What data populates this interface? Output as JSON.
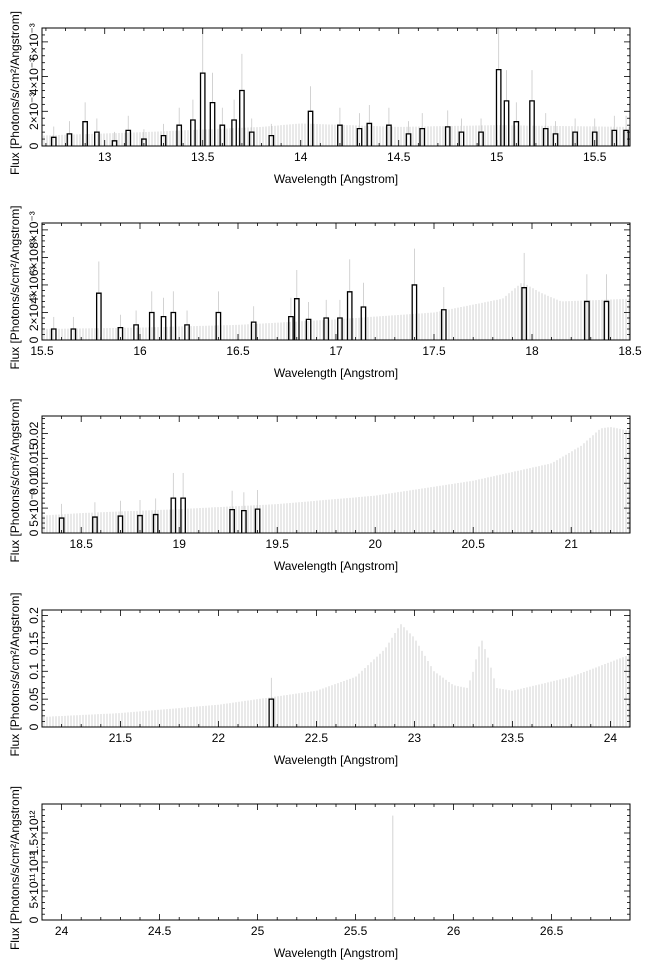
{
  "chart_data": [
    {
      "type": "line",
      "xlabel": "Wavelength [Angstrom]",
      "ylabel": "Flux [Photons/s/cm²/Angstrom]",
      "xlim": [
        12.68,
        15.68
      ],
      "ylim": [
        0,
        0.0068
      ],
      "xticks": [
        13,
        13.5,
        14,
        14.5,
        15,
        15.5
      ],
      "xtick_labels": [
        "13",
        "13.5",
        "14",
        "14.5",
        "15",
        "15.5"
      ],
      "yticks": [
        0,
        0.002,
        0.004,
        0.006
      ],
      "ytick_labels": [
        "0",
        "2×10⁻³",
        "4×10⁻³",
        "6×10⁻³"
      ],
      "envelope": [
        [
          12.68,
          0.0006
        ],
        [
          13.2,
          0.0008
        ],
        [
          13.8,
          0.0011
        ],
        [
          14.0,
          0.0013
        ],
        [
          14.5,
          0.0011
        ],
        [
          15.0,
          0.0012
        ],
        [
          15.68,
          0.0011
        ]
      ],
      "data": [
        [
          12.74,
          0.0005
        ],
        [
          12.82,
          0.0007
        ],
        [
          12.9,
          0.0014
        ],
        [
          12.96,
          0.0008
        ],
        [
          13.05,
          0.0003
        ],
        [
          13.12,
          0.0009
        ],
        [
          13.2,
          0.0004
        ],
        [
          13.3,
          0.0006
        ],
        [
          13.38,
          0.0012
        ],
        [
          13.45,
          0.0015
        ],
        [
          13.5,
          0.0042
        ],
        [
          13.55,
          0.0025
        ],
        [
          13.6,
          0.0012
        ],
        [
          13.66,
          0.0015
        ],
        [
          13.7,
          0.0032
        ],
        [
          13.75,
          0.0008
        ],
        [
          13.85,
          0.0006
        ],
        [
          14.05,
          0.002
        ],
        [
          14.2,
          0.0012
        ],
        [
          14.3,
          0.001
        ],
        [
          14.35,
          0.0013
        ],
        [
          14.45,
          0.0012
        ],
        [
          14.55,
          0.0007
        ],
        [
          14.62,
          0.001
        ],
        [
          14.75,
          0.0011
        ],
        [
          14.82,
          0.0008
        ],
        [
          14.92,
          0.0008
        ],
        [
          15.01,
          0.0044
        ],
        [
          15.05,
          0.0026
        ],
        [
          15.1,
          0.0014
        ],
        [
          15.18,
          0.0026
        ],
        [
          15.25,
          0.001
        ],
        [
          15.3,
          0.0007
        ],
        [
          15.4,
          0.0008
        ],
        [
          15.5,
          0.0008
        ],
        [
          15.6,
          0.0009
        ],
        [
          15.66,
          0.0009
        ]
      ]
    },
    {
      "type": "line",
      "xlabel": "Wavelength [Angstrom]",
      "ylabel": "Flux [Photons/s/cm²/Angstrom]",
      "xlim": [
        15.5,
        18.5
      ],
      "ylim": [
        0,
        0.0085
      ],
      "xticks": [
        15.5,
        16,
        16.5,
        17,
        17.5,
        18,
        18.5
      ],
      "xtick_labels": [
        "15.5",
        "16",
        "16.5",
        "17",
        "17.5",
        "18",
        "18.5"
      ],
      "yticks": [
        0,
        0.002,
        0.004,
        0.006,
        0.008
      ],
      "ytick_labels": [
        "0",
        "2×10⁻³",
        "4×10⁻³",
        "6×10⁻³",
        "8×10⁻³"
      ],
      "envelope": [
        [
          15.5,
          0.0008
        ],
        [
          16.0,
          0.0009
        ],
        [
          16.5,
          0.0011
        ],
        [
          17.0,
          0.0015
        ],
        [
          17.5,
          0.002
        ],
        [
          17.85,
          0.003
        ],
        [
          17.95,
          0.0042
        ],
        [
          18.05,
          0.0034
        ],
        [
          18.15,
          0.0028
        ],
        [
          18.5,
          0.003
        ]
      ],
      "data": [
        [
          15.56,
          0.0008
        ],
        [
          15.66,
          0.0008
        ],
        [
          15.79,
          0.0034
        ],
        [
          15.9,
          0.0009
        ],
        [
          15.98,
          0.0011
        ],
        [
          16.06,
          0.002
        ],
        [
          16.12,
          0.0017
        ],
        [
          16.17,
          0.002
        ],
        [
          16.24,
          0.0011
        ],
        [
          16.4,
          0.002
        ],
        [
          16.58,
          0.0013
        ],
        [
          16.77,
          0.0017
        ],
        [
          16.8,
          0.003
        ],
        [
          16.86,
          0.0015
        ],
        [
          16.95,
          0.0016
        ],
        [
          17.02,
          0.0016
        ],
        [
          17.07,
          0.0035
        ],
        [
          17.14,
          0.0024
        ],
        [
          17.4,
          0.004
        ],
        [
          17.55,
          0.0022
        ],
        [
          17.96,
          0.0038
        ],
        [
          18.28,
          0.0028
        ],
        [
          18.38,
          0.0028
        ]
      ]
    },
    {
      "type": "line",
      "xlabel": "Wavelength [Angstrom]",
      "ylabel": "Flux [Photons/s/cm²/Angstrom]",
      "xlim": [
        18.3,
        21.3
      ],
      "ylim": [
        0,
        0.0235
      ],
      "xticks": [
        18.5,
        19,
        19.5,
        20,
        20.5,
        21
      ],
      "xtick_labels": [
        "18.5",
        "19",
        "19.5",
        "20",
        "20.5",
        "21"
      ],
      "yticks": [
        0,
        0.005,
        0.01,
        0.015,
        0.02
      ],
      "ytick_labels": [
        "0",
        "5×10⁻³",
        "0.01",
        "0.015",
        "0.02"
      ],
      "envelope": [
        [
          18.3,
          0.0035
        ],
        [
          18.5,
          0.004
        ],
        [
          19.0,
          0.0048
        ],
        [
          19.5,
          0.0058
        ],
        [
          20.0,
          0.0075
        ],
        [
          20.5,
          0.0105
        ],
        [
          20.9,
          0.014
        ],
        [
          21.05,
          0.0175
        ],
        [
          21.15,
          0.021
        ],
        [
          21.2,
          0.0213
        ],
        [
          21.3,
          0.0205
        ]
      ],
      "data": [
        [
          18.4,
          0.003
        ],
        [
          18.57,
          0.0032
        ],
        [
          18.7,
          0.0034
        ],
        [
          18.8,
          0.0035
        ],
        [
          18.88,
          0.0037
        ],
        [
          18.97,
          0.007
        ],
        [
          19.02,
          0.007
        ],
        [
          19.27,
          0.0047
        ],
        [
          19.33,
          0.0045
        ],
        [
          19.4,
          0.0048
        ]
      ]
    },
    {
      "type": "line",
      "xlabel": "Wavelength [Angstrom]",
      "ylabel": "Flux [Photons/s/cm²/Angstrom]",
      "xlim": [
        21.1,
        24.1
      ],
      "ylim": [
        0,
        0.21
      ],
      "xticks": [
        21.5,
        22,
        22.5,
        23,
        23.5,
        24
      ],
      "xtick_labels": [
        "21.5",
        "22",
        "22.5",
        "23",
        "23.5",
        "24"
      ],
      "yticks": [
        0,
        0.05,
        0.1,
        0.15,
        0.2
      ],
      "ytick_labels": [
        "0",
        "0.05",
        "0.1",
        "0.15",
        "0.2"
      ],
      "envelope": [
        [
          21.1,
          0.018
        ],
        [
          21.5,
          0.025
        ],
        [
          22.0,
          0.04
        ],
        [
          22.5,
          0.065
        ],
        [
          22.7,
          0.09
        ],
        [
          22.85,
          0.14
        ],
        [
          22.93,
          0.185
        ],
        [
          23.0,
          0.16
        ],
        [
          23.1,
          0.1
        ],
        [
          23.2,
          0.075
        ],
        [
          23.27,
          0.07
        ],
        [
          23.3,
          0.1
        ],
        [
          23.34,
          0.16
        ],
        [
          23.38,
          0.12
        ],
        [
          23.42,
          0.07
        ],
        [
          23.5,
          0.065
        ],
        [
          23.8,
          0.09
        ],
        [
          24.1,
          0.13
        ]
      ],
      "data": [
        [
          22.27,
          0.05
        ]
      ]
    },
    {
      "type": "line",
      "xlabel": "Wavelength [Angstrom]",
      "ylabel": "Flux [Photons/s/cm²/Angstrom]",
      "xlim": [
        23.9,
        26.9
      ],
      "ylim": [
        0,
        2000000000000.0
      ],
      "xticks": [
        24,
        24.5,
        25,
        25.5,
        26,
        26.5
      ],
      "xtick_labels": [
        "24",
        "24.5",
        "25",
        "25.5",
        "26",
        "26.5"
      ],
      "yticks": [
        0,
        500000000000.0,
        1000000000000.0,
        1500000000000.0
      ],
      "ytick_labels": [
        "0",
        "5×10¹¹",
        "10¹²",
        "1.5×10¹²"
      ],
      "envelope": [],
      "spikes": [
        [
          25.69,
          1800000000000.0
        ]
      ],
      "data": []
    }
  ]
}
